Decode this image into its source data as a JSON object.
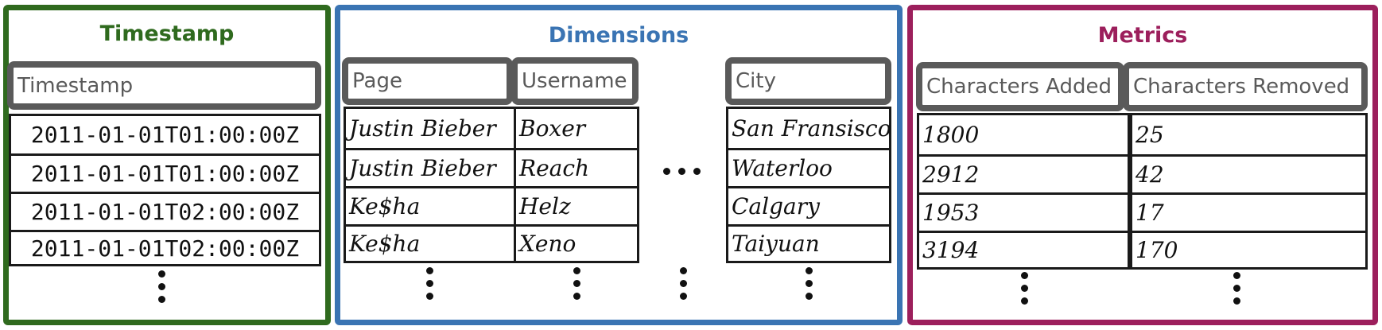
{
  "timestamp": {
    "title": "Timestamp",
    "header": "Timestamp",
    "rows": [
      "2011-01-01T01:00:00Z",
      "2011-01-01T01:00:00Z",
      "2011-01-01T02:00:00Z",
      "2011-01-01T02:00:00Z"
    ]
  },
  "dimensions": {
    "title": "Dimensions",
    "columns": [
      {
        "header": "Page",
        "rows": [
          "Justin Bieber",
          "Justin Bieber",
          "Ke$ha",
          "Ke$ha"
        ]
      },
      {
        "header": "Username",
        "rows": [
          "Boxer",
          "Reach",
          "Helz",
          "Xeno"
        ]
      },
      {
        "header": "City",
        "rows": [
          "San Fransisco",
          "Waterloo",
          "Calgary",
          "Taiyuan"
        ]
      }
    ]
  },
  "metrics": {
    "title": "Metrics",
    "columns": [
      {
        "header": "Characters Added",
        "rows": [
          "1800",
          "2912",
          "1953",
          "3194"
        ]
      },
      {
        "header": "Characters Removed",
        "rows": [
          "25",
          "42",
          "17",
          "170"
        ]
      }
    ]
  },
  "colors": {
    "timestamp": "#2f6a1e",
    "dimensions": "#3a74b3",
    "metrics": "#9c1f5c",
    "header_border": "#5a5a5a"
  }
}
